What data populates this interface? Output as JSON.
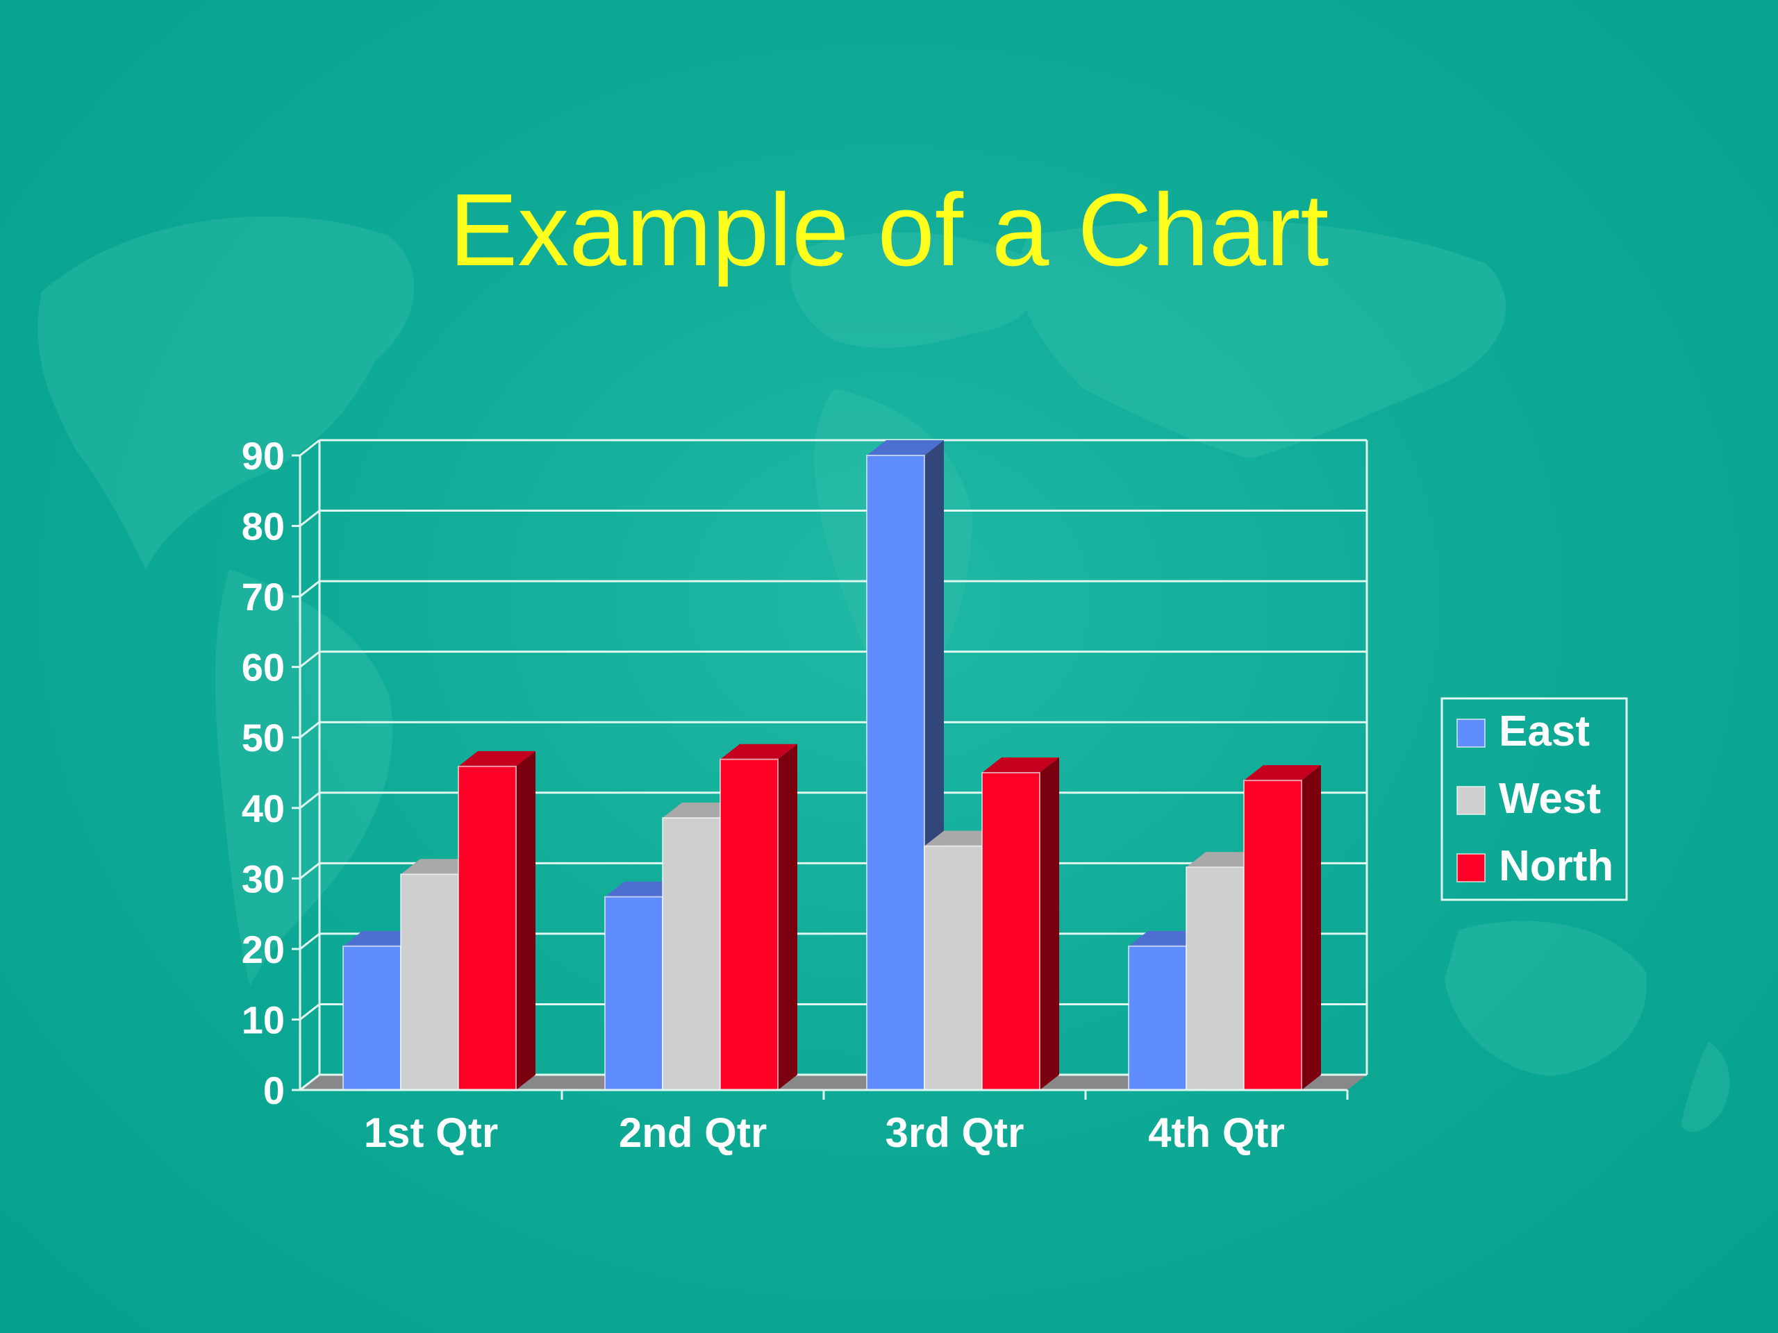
{
  "slide": {
    "title": "Example of a Chart",
    "title_color": "#ffff1e",
    "background_color": "#0fab97"
  },
  "chart_data": {
    "type": "bar",
    "title": "",
    "xlabel": "",
    "ylabel": "",
    "categories": [
      "1st Qtr",
      "2nd Qtr",
      "3rd Qtr",
      "4th Qtr"
    ],
    "series": [
      {
        "name": "East",
        "values": [
          20.4,
          27.4,
          90,
          20.4
        ],
        "color": "#5f8cff",
        "side": "#33467a",
        "top": "#4d6fd0"
      },
      {
        "name": "West",
        "values": [
          30.6,
          38.6,
          34.6,
          31.6
        ],
        "color": "#cfcfcf",
        "side": "#8a8a8a",
        "top": "#a9a9a9"
      },
      {
        "name": "North",
        "values": [
          45.9,
          46.9,
          45,
          43.9
        ],
        "color": "#ff0026",
        "side": "#7a0010",
        "top": "#c4001e"
      }
    ],
    "ylim": [
      0,
      90
    ],
    "y_ticks": [
      "0",
      "10",
      "20",
      "30",
      "40",
      "50",
      "60",
      "70",
      "80",
      "90"
    ],
    "grid": true,
    "legend": "right",
    "three_d": true
  }
}
